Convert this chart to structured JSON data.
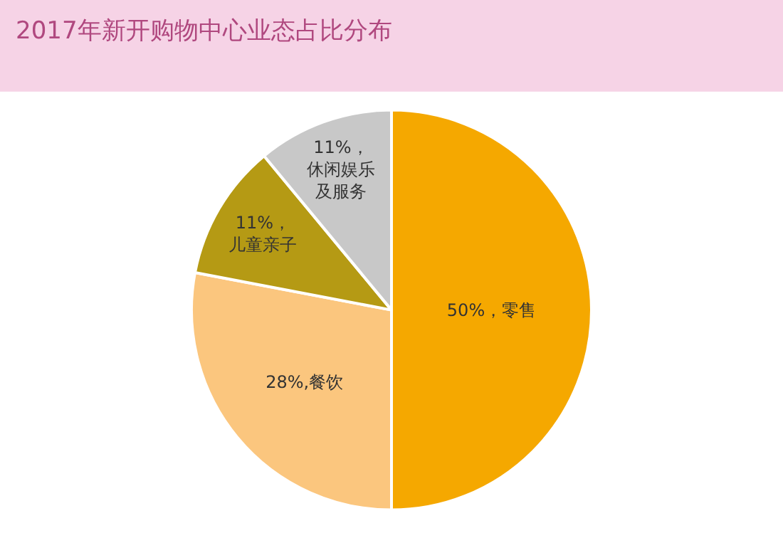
{
  "chart_data": {
    "type": "pie",
    "title": "2017年新开购物中心业态占比分布",
    "categories": [
      "零售",
      "餐饮",
      "儿童亲子",
      "休闲娱乐及服务"
    ],
    "values": [
      50,
      28,
      11,
      11
    ],
    "colors": [
      "#f5a800",
      "#fbc67e",
      "#b59a14",
      "#c8c8c8"
    ],
    "value_labels": [
      "50%，",
      "28%,",
      "11%，",
      "11%，"
    ],
    "legend": false
  }
}
